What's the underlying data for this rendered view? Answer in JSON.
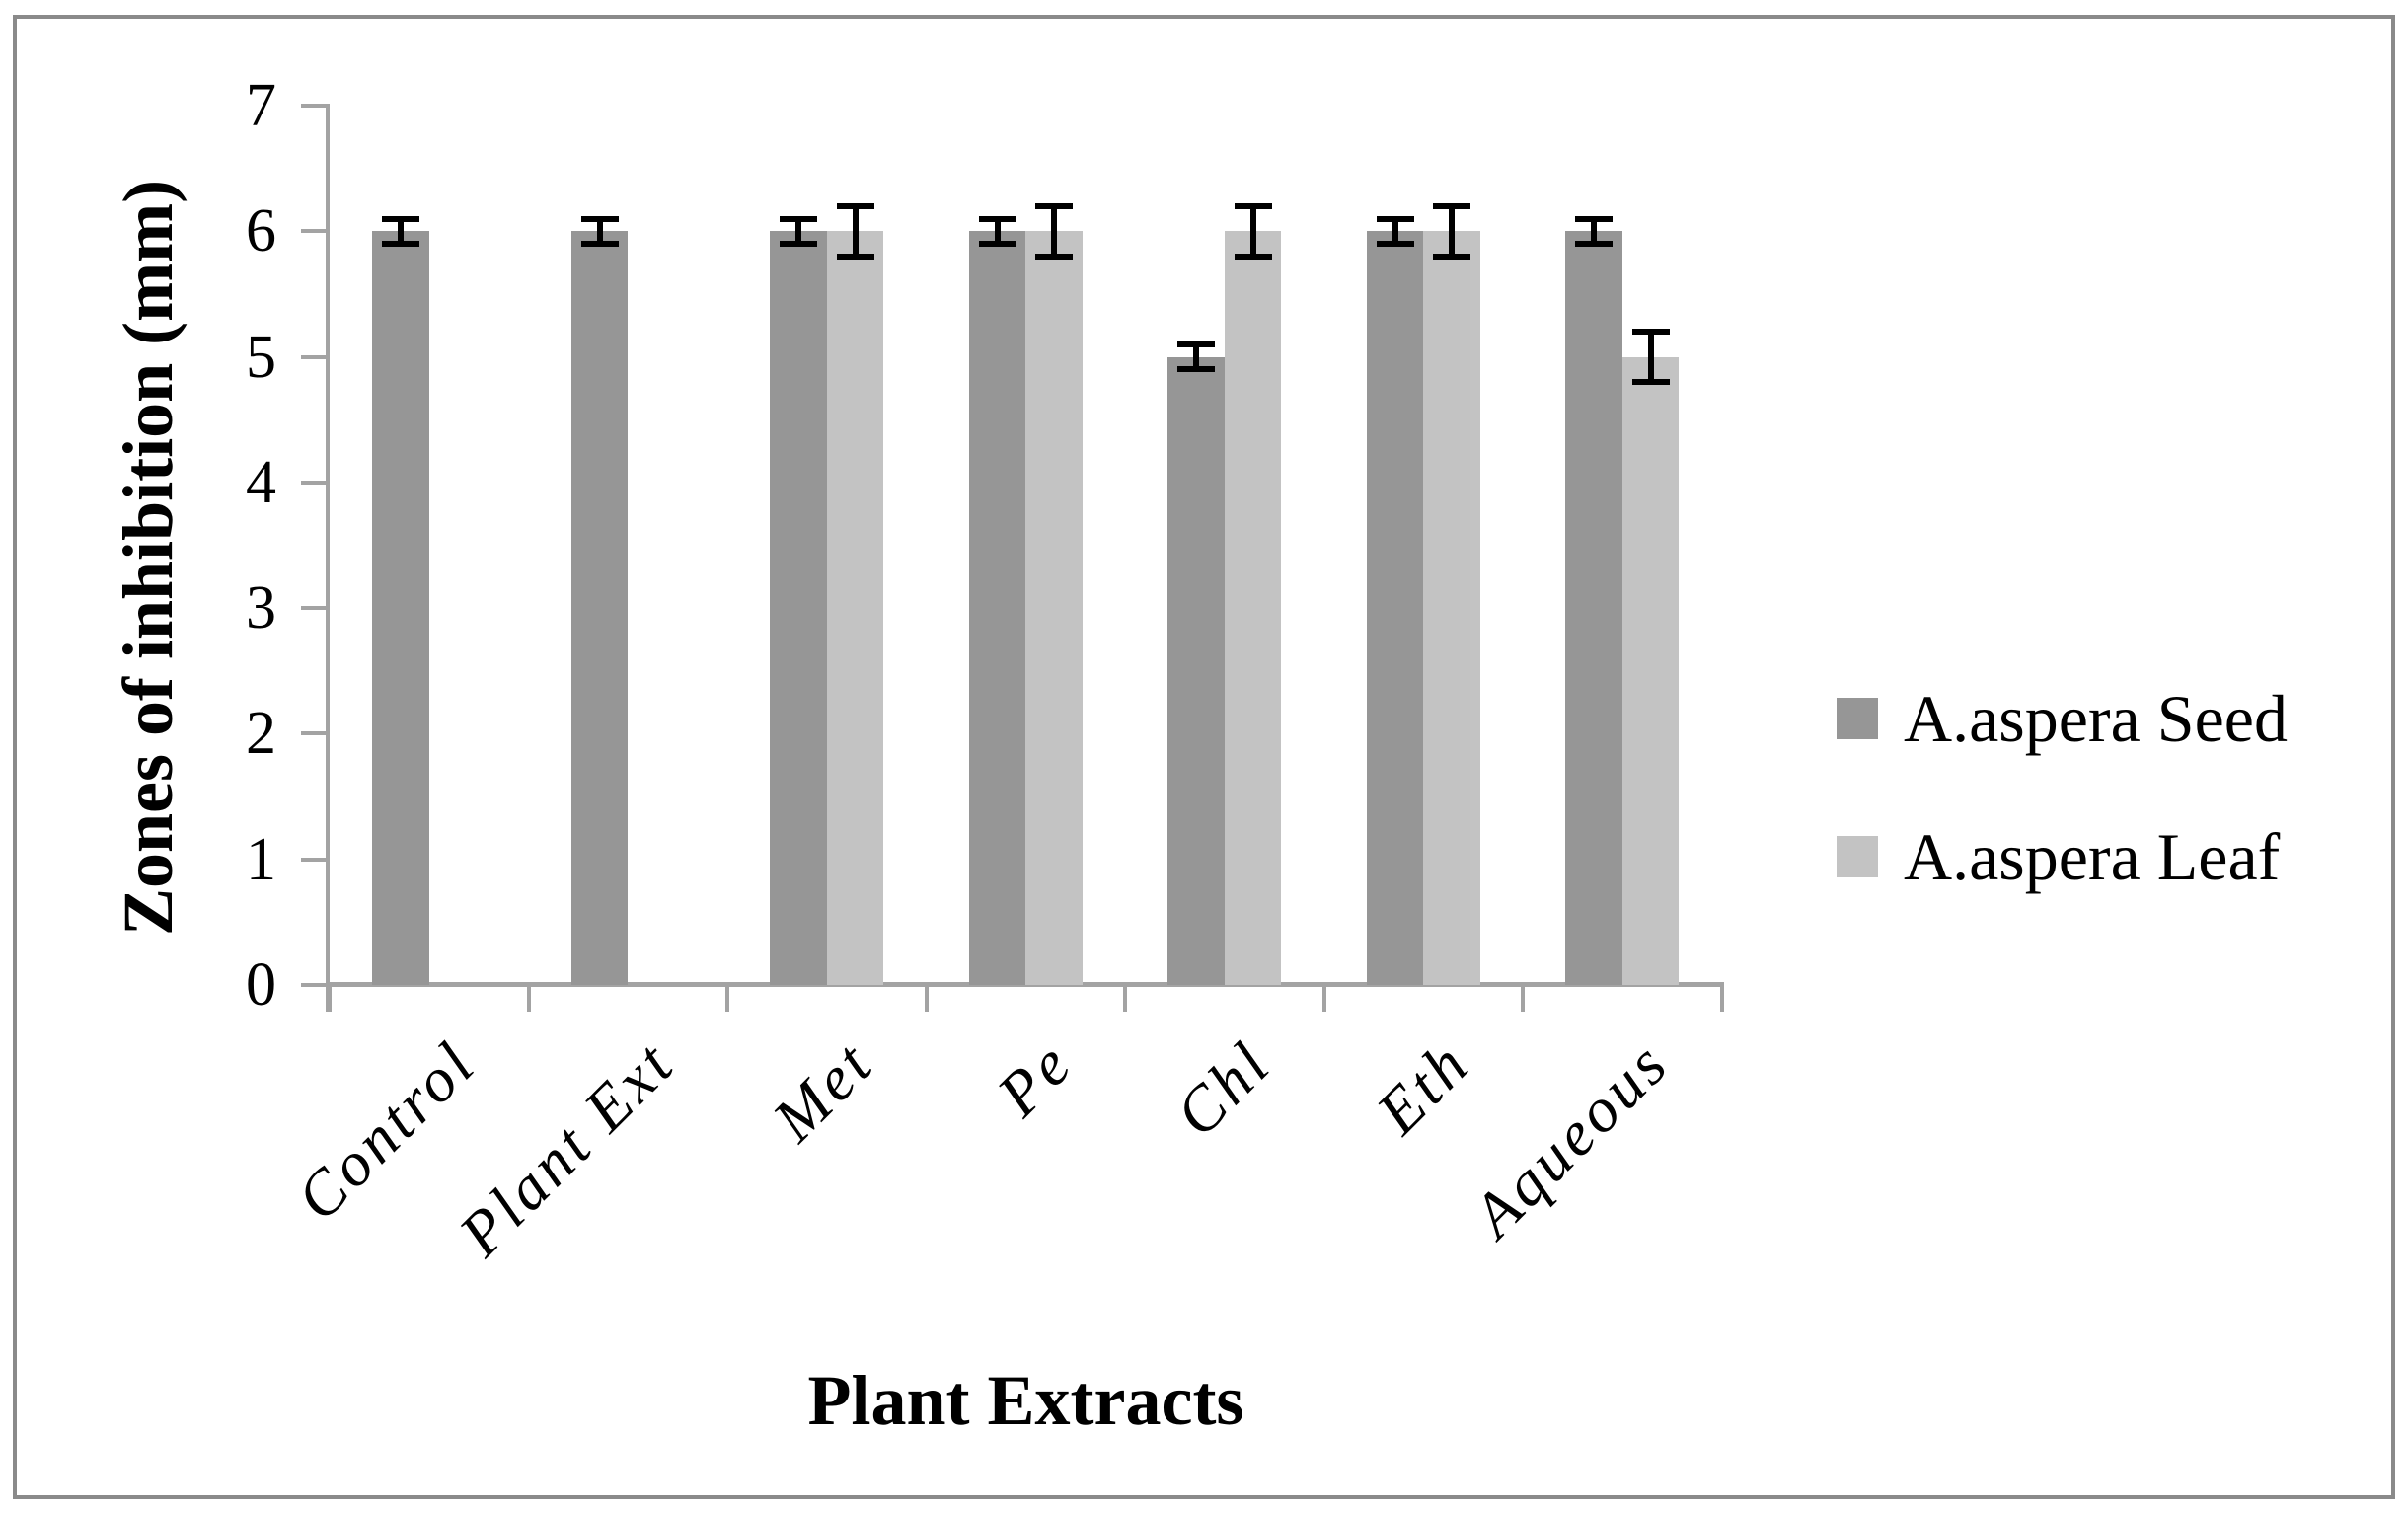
{
  "figure": {
    "border_color": "#8a8a8a",
    "background": "#ffffff"
  },
  "chart_data": {
    "type": "bar",
    "title": "",
    "xlabel": "Plant Extracts",
    "ylabel": "Zones of inhibition (mm)",
    "categories": [
      "Control",
      "Plant Ext",
      "Met",
      "Pe",
      "Chl",
      "Eth",
      "Aqueous"
    ],
    "series": [
      {
        "name": "A.aspera Seed",
        "color": "#969696",
        "values": [
          6,
          6,
          6,
          6,
          5,
          6,
          6
        ],
        "errors": [
          0.1,
          0.1,
          0.1,
          0.1,
          0.1,
          0.1,
          0.1
        ]
      },
      {
        "name": "A.aspera Leaf",
        "color": "#c3c3c3",
        "values": [
          null,
          null,
          6,
          6,
          6,
          6,
          5
        ],
        "errors": [
          null,
          null,
          0.2,
          0.2,
          0.2,
          0.2,
          0.2
        ]
      }
    ],
    "ylim": [
      0,
      7
    ],
    "yticks": [
      0,
      1,
      2,
      3,
      4,
      5,
      6,
      7
    ],
    "grid": false,
    "legend_position": "right",
    "axis_color": "#a3a3a3",
    "error_bar_color": "#000000"
  }
}
